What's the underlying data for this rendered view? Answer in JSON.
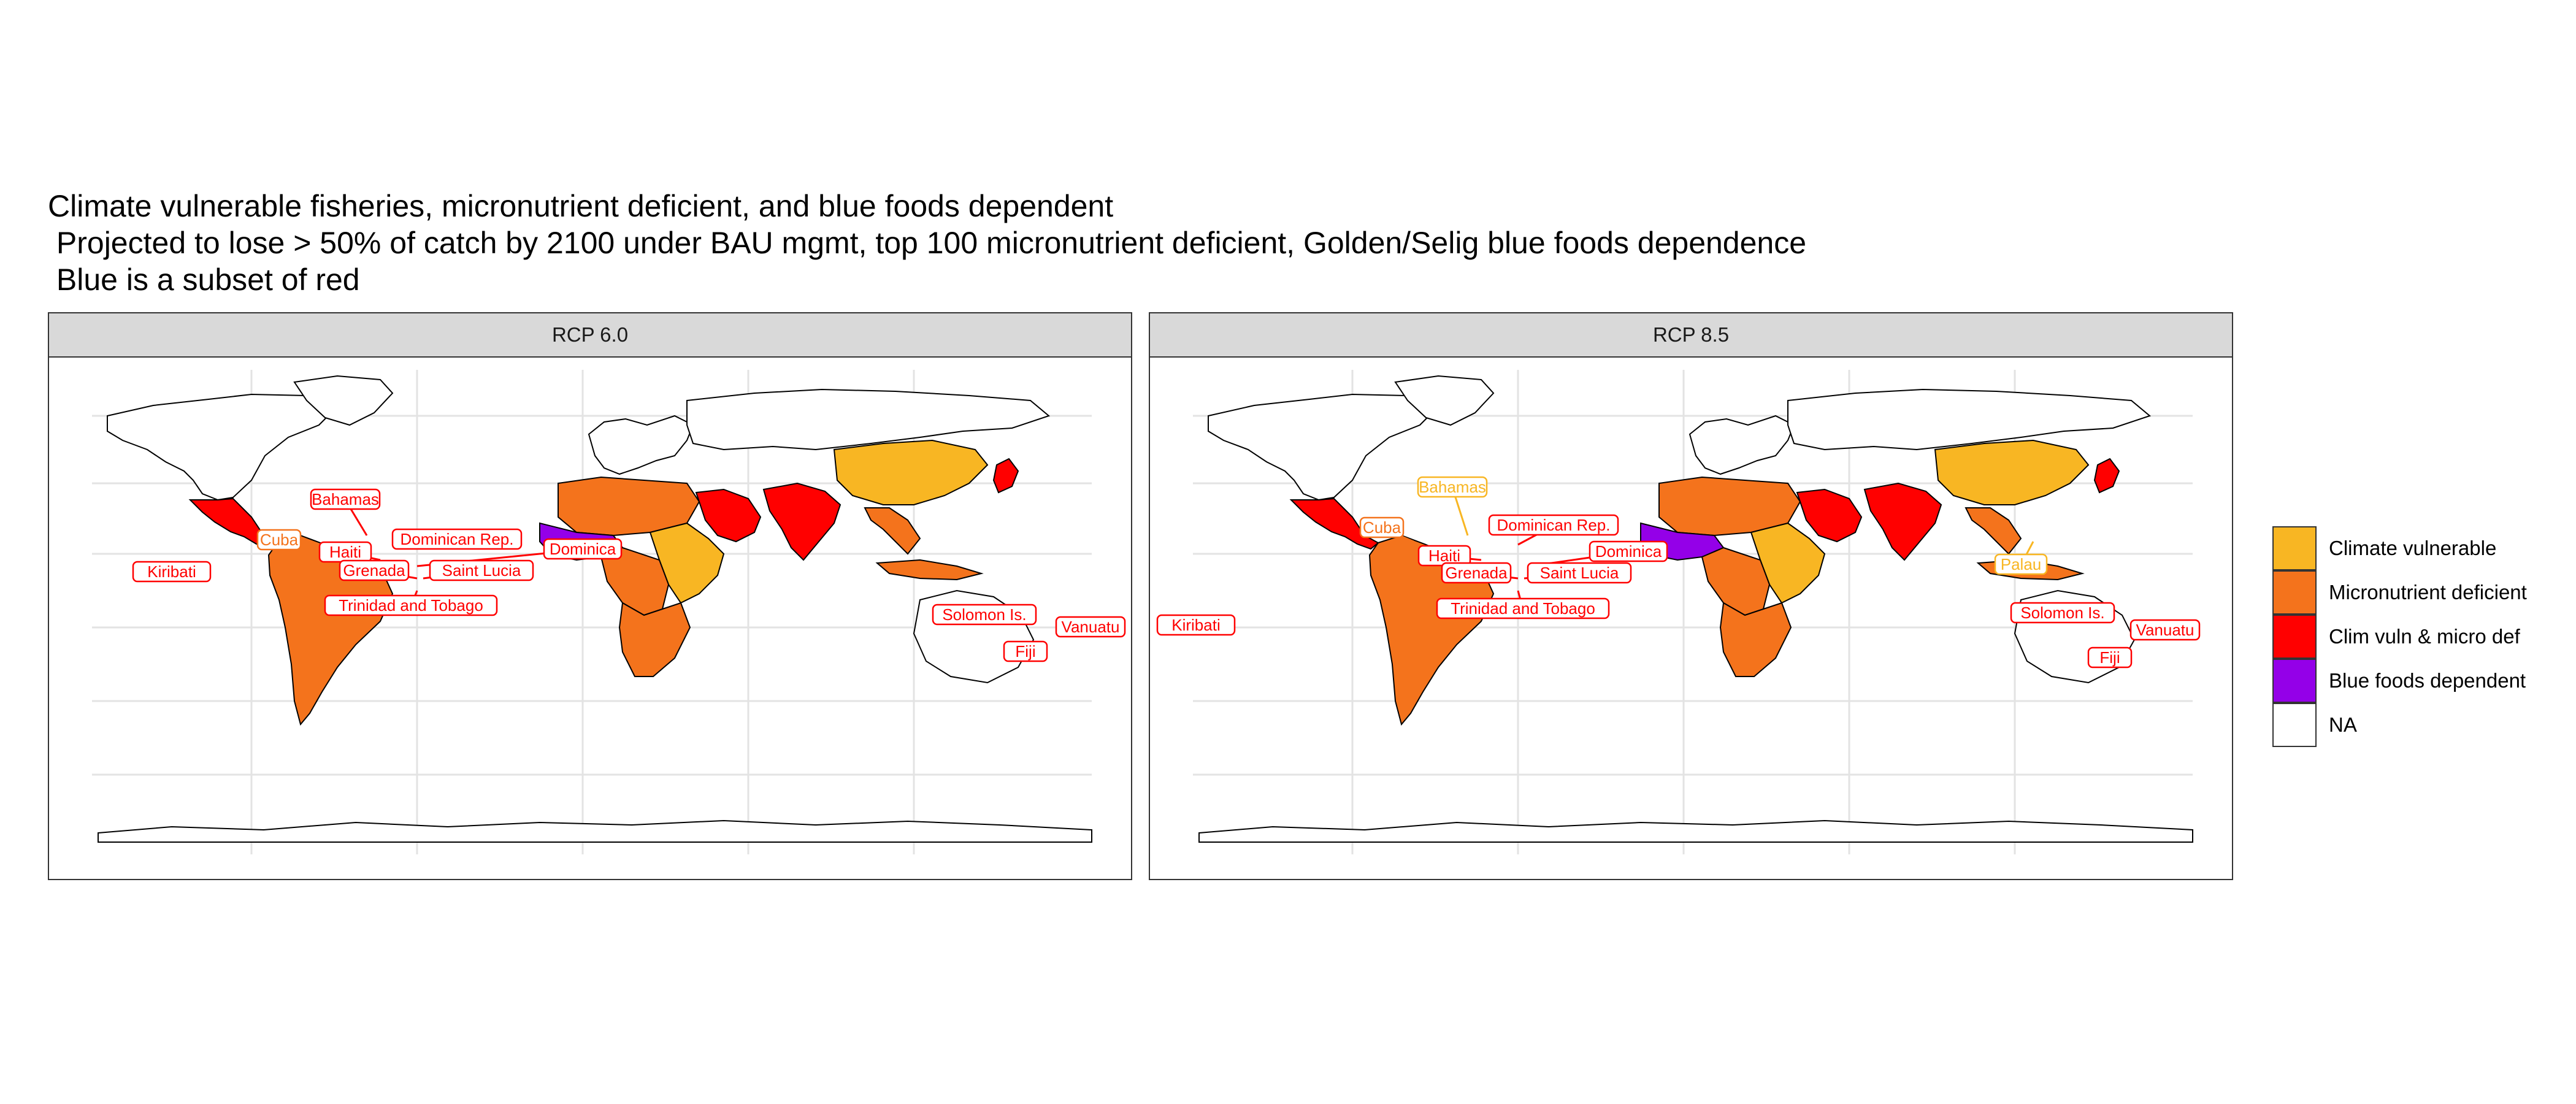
{
  "title": {
    "lines": [
      "Climate vulnerable fisheries, micronutrient deficient, and blue foods dependent",
      " Projected to lose > 50% of catch by 2100 under BAU mgmt, top 100 micronutrient deficient, Golden/Selig blue foods dependence",
      " Blue is a subset of red"
    ]
  },
  "colors": {
    "climate_vulnerable": "#F8B623",
    "micronutrient_deficient": "#F4731C",
    "clim_vuln_micro_def": "#FF0000",
    "blue_foods_dependent": "#9400E8",
    "na": "#FFFFFF"
  },
  "legend": {
    "items": [
      {
        "label": "Climate vulnerable",
        "color": "#F8B623"
      },
      {
        "label": "Micronutrient deficient",
        "color": "#F4731C"
      },
      {
        "label": "Clim vuln & micro def",
        "color": "#FF0000"
      },
      {
        "label": "Blue foods dependent",
        "color": "#9400E8"
      },
      {
        "label": "NA",
        "color": "#FFFFFF"
      }
    ]
  },
  "panels": [
    {
      "title": "RCP 6.0",
      "country_labels": [
        {
          "name": "Bahamas",
          "category": "clim_vuln_micro_def"
        },
        {
          "name": "Dominican Rep.",
          "category": "clim_vuln_micro_def"
        },
        {
          "name": "Cuba",
          "category": "micronutrient_deficient"
        },
        {
          "name": "Haiti",
          "category": "clim_vuln_micro_def"
        },
        {
          "name": "Dominica",
          "category": "clim_vuln_micro_def"
        },
        {
          "name": "Kiribati",
          "category": "clim_vuln_micro_def"
        },
        {
          "name": "Grenada",
          "category": "clim_vuln_micro_def"
        },
        {
          "name": "Saint Lucia",
          "category": "clim_vuln_micro_def"
        },
        {
          "name": "Trinidad and Tobago",
          "category": "clim_vuln_micro_def"
        },
        {
          "name": "Solomon Is.",
          "category": "clim_vuln_micro_def"
        },
        {
          "name": "Vanuatu",
          "category": "clim_vuln_micro_def"
        },
        {
          "name": "Fiji",
          "category": "clim_vuln_micro_def"
        }
      ]
    },
    {
      "title": "RCP 8.5",
      "country_labels": [
        {
          "name": "Bahamas",
          "category": "climate_vulnerable"
        },
        {
          "name": "Cuba",
          "category": "micronutrient_deficient"
        },
        {
          "name": "Dominican Rep.",
          "category": "clim_vuln_micro_def"
        },
        {
          "name": "Haiti",
          "category": "clim_vuln_micro_def"
        },
        {
          "name": "Dominica",
          "category": "clim_vuln_micro_def"
        },
        {
          "name": "Grenada",
          "category": "clim_vuln_micro_def"
        },
        {
          "name": "Saint Lucia",
          "category": "clim_vuln_micro_def"
        },
        {
          "name": "Trinidad and Tobago",
          "category": "clim_vuln_micro_def"
        },
        {
          "name": "Palau",
          "category": "climate_vulnerable"
        },
        {
          "name": "Kiribati",
          "category": "clim_vuln_micro_def"
        },
        {
          "name": "Solomon Is.",
          "category": "clim_vuln_micro_def"
        },
        {
          "name": "Vanuatu",
          "category": "clim_vuln_micro_def"
        },
        {
          "name": "Fiji",
          "category": "clim_vuln_micro_def"
        }
      ]
    }
  ],
  "region_fills": {
    "north_america": "na",
    "greenland": "na",
    "mexico_central_america": "clim_vuln_micro_def",
    "south_america": "micronutrient_deficient",
    "europe": "na",
    "russia": "na",
    "west_africa": "blue_foods_dependent",
    "north_africa": "micronutrient_deficient",
    "east_africa": "climate_vulnerable",
    "central_africa": "micronutrient_deficient",
    "southern_africa": "micronutrient_deficient",
    "arabian_peninsula": "clim_vuln_micro_def",
    "india": "clim_vuln_micro_def",
    "china": "climate_vulnerable",
    "southeast_asia": "micronutrient_deficient",
    "indonesia": "micronutrient_deficient",
    "japan": "clim_vuln_micro_def",
    "australia": "na",
    "antarctica": "na"
  }
}
